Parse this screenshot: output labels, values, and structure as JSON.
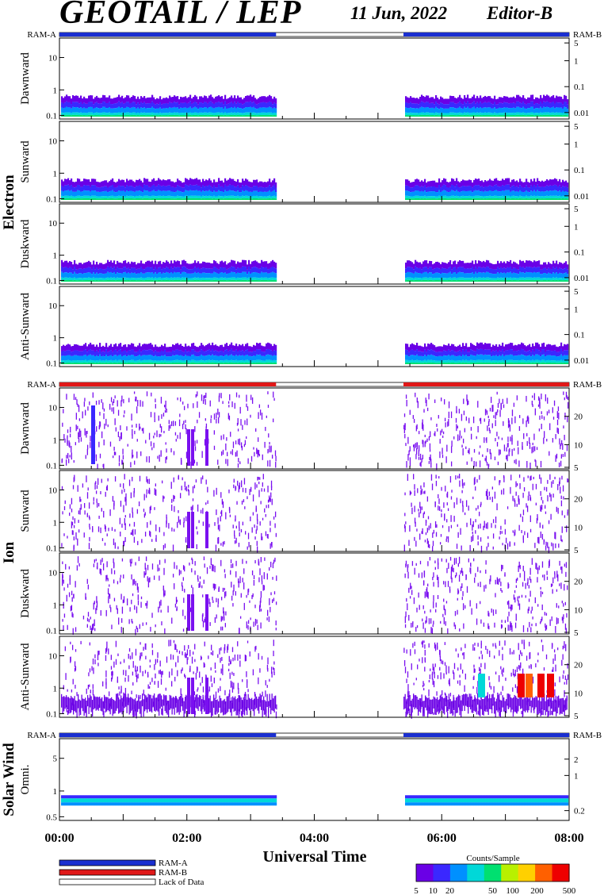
{
  "header": {
    "title": "GEOTAIL / LEP",
    "date": "11 Jun, 2022",
    "editor": "Editor-B"
  },
  "colors": {
    "ram_a": "#1a2fd0",
    "ram_b": "#e01818",
    "lack": "#ffffff",
    "scale": [
      "#6a00e6",
      "#3a28ff",
      "#0090ff",
      "#00d8d8",
      "#00e070",
      "#b8f000",
      "#ffd000",
      "#ff6000",
      "#ee0000"
    ]
  },
  "chart_data": {
    "type": "heatmap",
    "xlabel": "Universal Time",
    "x_ticks": [
      "00:00",
      "02:00",
      "04:00",
      "06:00",
      "08:00"
    ],
    "x_range_hours": [
      0,
      8
    ],
    "data_gap_hours": [
      3.4,
      5.4
    ],
    "groups": [
      {
        "name": "Electron",
        "ram_left": "RAM-A",
        "ram_right": "RAM-B",
        "ram_status": "RAM-A",
        "panels": [
          {
            "label": "Dawnward",
            "left_ticks": [
              "10",
              "1",
              "0.1"
            ],
            "right_ticks": [
              "5",
              "1",
              "0.1",
              "0.01"
            ]
          },
          {
            "label": "Sunward",
            "left_ticks": [
              "10",
              "1",
              "0.1"
            ],
            "right_ticks": [
              "5",
              "1",
              "0.1",
              "0.01"
            ]
          },
          {
            "label": "Duskward",
            "left_ticks": [
              "10",
              "1",
              "0.1"
            ],
            "right_ticks": [
              "5",
              "1",
              "0.1",
              "0.01"
            ]
          },
          {
            "label": "Anti-Sunward",
            "left_ticks": [
              "10",
              "1",
              "0.1"
            ],
            "right_ticks": [
              "5",
              "1",
              "0.1",
              "0.01"
            ]
          }
        ]
      },
      {
        "name": "Ion",
        "ram_left": "RAM-A",
        "ram_right": "RAM-B",
        "ram_status": "RAM-B",
        "panels": [
          {
            "label": "Dawnward",
            "left_ticks": [
              "10",
              "1",
              "0.1"
            ],
            "right_ticks": [
              "20",
              "10",
              "5"
            ]
          },
          {
            "label": "Sunward",
            "left_ticks": [
              "10",
              "1",
              "0.1"
            ],
            "right_ticks": [
              "20",
              "10",
              "5"
            ]
          },
          {
            "label": "Duskward",
            "left_ticks": [
              "10",
              "1",
              "0.1"
            ],
            "right_ticks": [
              "20",
              "10",
              "5"
            ]
          },
          {
            "label": "Anti-Sunward",
            "left_ticks": [
              "10",
              "1",
              "0.1"
            ],
            "right_ticks": [
              "20",
              "10",
              "5"
            ]
          }
        ]
      },
      {
        "name": "Solar Wind",
        "ram_left": "RAM-A",
        "ram_right": "RAM-B",
        "ram_status": "RAM-A",
        "panels": [
          {
            "label": "Omni.",
            "left_ticks": [
              "5",
              "1",
              "0.5"
            ],
            "right_ticks": [
              "2",
              "1",
              "0.2"
            ]
          }
        ]
      }
    ],
    "legend": {
      "items": [
        "RAM-A",
        "RAM-B",
        "Lack of Data"
      ],
      "colorbar_title": "Counts/Sample",
      "colorbar_ticks": [
        "5",
        "10",
        "20",
        "50",
        "100",
        "200",
        "500"
      ]
    }
  }
}
